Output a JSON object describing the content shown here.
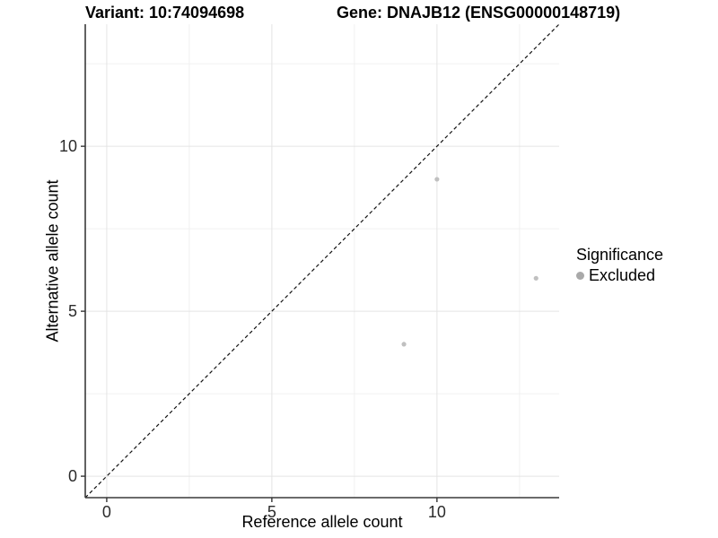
{
  "chart_data": {
    "type": "scatter",
    "titles": {
      "variant": "Variant: 10:74094698",
      "gene": "Gene: DNAJB12 (ENSG00000148719)"
    },
    "xlabel": "Reference allele count",
    "ylabel": "Alternative allele count",
    "xlim": [
      -0.65,
      13.7
    ],
    "ylim": [
      -0.65,
      13.7
    ],
    "x_ticks": [
      0,
      5,
      10
    ],
    "y_ticks": [
      0,
      5,
      10
    ],
    "x_minor_ticks": [
      2.5,
      7.5,
      12.5
    ],
    "y_minor_ticks": [
      2.5,
      7.5,
      12.5
    ],
    "grid": true,
    "identity_line": {
      "style": "dashed",
      "color": "#111111"
    },
    "series": [
      {
        "name": "Excluded",
        "color": "#c0c0c0",
        "points": [
          {
            "x": 10,
            "y": 9
          },
          {
            "x": 9,
            "y": 4
          },
          {
            "x": 13,
            "y": 6
          }
        ]
      }
    ],
    "legend": {
      "title": "Significance",
      "position": "right",
      "entries": [
        {
          "label": "Excluded",
          "color": "#a9a9a9"
        }
      ]
    },
    "colors": {
      "background": "#ffffff",
      "grid_major": "#e4e4e4",
      "grid_minor": "#f0f0f0",
      "axis_line": "#3a3a3a",
      "tick_mark": "#333333",
      "tick_label": "#2b2b2b"
    }
  }
}
